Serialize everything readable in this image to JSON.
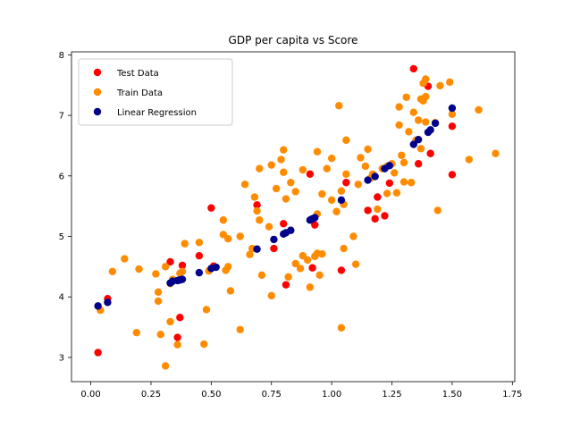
{
  "chart_data": {
    "type": "scatter",
    "title": "GDP per capita vs Score",
    "xlabel": "",
    "ylabel": "",
    "xlim": [
      -0.08,
      1.76
    ],
    "ylim": [
      2.6,
      8.05
    ],
    "xticks": [
      0.0,
      0.25,
      0.5,
      0.75,
      1.0,
      1.25,
      1.5,
      1.75
    ],
    "xtick_labels": [
      "0.00",
      "0.25",
      "0.50",
      "0.75",
      "1.00",
      "1.25",
      "1.50",
      "1.75"
    ],
    "yticks": [
      3,
      4,
      5,
      6,
      7,
      8
    ],
    "ytick_labels": [
      "3",
      "4",
      "5",
      "6",
      "7",
      "8"
    ],
    "grid": false,
    "legend_position": "top-left",
    "series": [
      {
        "name": "Test Data",
        "color": "#ff0000",
        "points": [
          [
            0.03,
            3.08
          ],
          [
            0.07,
            3.97
          ],
          [
            0.33,
            4.58
          ],
          [
            0.36,
            3.33
          ],
          [
            0.37,
            3.66
          ],
          [
            0.38,
            4.52
          ],
          [
            0.45,
            4.68
          ],
          [
            0.5,
            5.47
          ],
          [
            0.51,
            4.51
          ],
          [
            0.69,
            5.52
          ],
          [
            0.76,
            4.8
          ],
          [
            0.8,
            5.21
          ],
          [
            0.81,
            4.2
          ],
          [
            0.91,
            6.03
          ],
          [
            0.92,
            4.48
          ],
          [
            0.93,
            5.19
          ],
          [
            1.04,
            4.44
          ],
          [
            1.06,
            5.89
          ],
          [
            1.15,
            5.43
          ],
          [
            1.18,
            5.29
          ],
          [
            1.19,
            5.65
          ],
          [
            1.22,
            5.34
          ],
          [
            1.24,
            5.88
          ],
          [
            1.34,
            7.77
          ],
          [
            1.36,
            6.2
          ],
          [
            1.4,
            7.48
          ],
          [
            1.41,
            6.37
          ],
          [
            1.5,
            6.82
          ],
          [
            1.5,
            6.02
          ]
        ]
      },
      {
        "name": "Train Data",
        "color": "#ff8c00",
        "points": [
          [
            0.04,
            3.78
          ],
          [
            0.09,
            4.42
          ],
          [
            0.14,
            4.63
          ],
          [
            0.19,
            3.41
          ],
          [
            0.2,
            4.46
          ],
          [
            0.27,
            4.38
          ],
          [
            0.28,
            3.93
          ],
          [
            0.28,
            4.08
          ],
          [
            0.29,
            3.38
          ],
          [
            0.31,
            2.86
          ],
          [
            0.31,
            4.5
          ],
          [
            0.33,
            3.59
          ],
          [
            0.33,
            4.22
          ],
          [
            0.34,
            4.29
          ],
          [
            0.36,
            3.21
          ],
          [
            0.37,
            4.39
          ],
          [
            0.38,
            4.42
          ],
          [
            0.39,
            4.88
          ],
          [
            0.45,
            4.9
          ],
          [
            0.47,
            3.22
          ],
          [
            0.48,
            3.79
          ],
          [
            0.49,
            4.43
          ],
          [
            0.55,
            5.27
          ],
          [
            0.55,
            5.03
          ],
          [
            0.56,
            4.44
          ],
          [
            0.57,
            4.5
          ],
          [
            0.57,
            4.96
          ],
          [
            0.58,
            4.1
          ],
          [
            0.62,
            5.0
          ],
          [
            0.62,
            3.46
          ],
          [
            0.64,
            5.86
          ],
          [
            0.66,
            4.7
          ],
          [
            0.67,
            4.8
          ],
          [
            0.68,
            5.65
          ],
          [
            0.69,
            5.42
          ],
          [
            0.7,
            5.27
          ],
          [
            0.7,
            6.12
          ],
          [
            0.71,
            4.36
          ],
          [
            0.74,
            5.16
          ],
          [
            0.75,
            6.18
          ],
          [
            0.75,
            4.02
          ],
          [
            0.77,
            5.79
          ],
          [
            0.79,
            6.27
          ],
          [
            0.8,
            6.43
          ],
          [
            0.8,
            6.06
          ],
          [
            0.81,
            5.62
          ],
          [
            0.82,
            4.33
          ],
          [
            0.83,
            5.89
          ],
          [
            0.85,
            5.74
          ],
          [
            0.85,
            4.55
          ],
          [
            0.87,
            4.47
          ],
          [
            0.88,
            4.68
          ],
          [
            0.88,
            6.1
          ],
          [
            0.9,
            4.61
          ],
          [
            0.91,
            4.16
          ],
          [
            0.93,
            4.67
          ],
          [
            0.94,
            6.4
          ],
          [
            0.94,
            5.37
          ],
          [
            0.94,
            4.72
          ],
          [
            0.95,
            4.36
          ],
          [
            0.96,
            5.7
          ],
          [
            0.96,
            4.71
          ],
          [
            0.98,
            6.12
          ],
          [
            1.0,
            6.29
          ],
          [
            1.0,
            5.6
          ],
          [
            1.02,
            5.41
          ],
          [
            1.03,
            7.16
          ],
          [
            1.04,
            5.75
          ],
          [
            1.04,
            3.49
          ],
          [
            1.05,
            5.53
          ],
          [
            1.05,
            4.8
          ],
          [
            1.06,
            6.59
          ],
          [
            1.06,
            6.03
          ],
          [
            1.09,
            5.0
          ],
          [
            1.1,
            4.54
          ],
          [
            1.11,
            5.86
          ],
          [
            1.12,
            6.3
          ],
          [
            1.14,
            6.16
          ],
          [
            1.15,
            6.44
          ],
          [
            1.16,
            5.96
          ],
          [
            1.17,
            6.03
          ],
          [
            1.19,
            5.45
          ],
          [
            1.21,
            6.12
          ],
          [
            1.23,
            5.71
          ],
          [
            1.23,
            6.16
          ],
          [
            1.25,
            6.2
          ],
          [
            1.26,
            6.05
          ],
          [
            1.27,
            5.72
          ],
          [
            1.28,
            6.84
          ],
          [
            1.28,
            7.14
          ],
          [
            1.29,
            6.34
          ],
          [
            1.3,
            6.22
          ],
          [
            1.3,
            5.9
          ],
          [
            1.31,
            7.3
          ],
          [
            1.32,
            6.73
          ],
          [
            1.33,
            5.89
          ],
          [
            1.34,
            7.05
          ],
          [
            1.35,
            6.59
          ],
          [
            1.36,
            6.92
          ],
          [
            1.37,
            7.27
          ],
          [
            1.37,
            6.45
          ],
          [
            1.38,
            7.24
          ],
          [
            1.38,
            7.53
          ],
          [
            1.39,
            7.6
          ],
          [
            1.39,
            6.89
          ],
          [
            1.39,
            7.31
          ],
          [
            1.43,
            6.88
          ],
          [
            1.44,
            5.43
          ],
          [
            1.45,
            7.49
          ],
          [
            1.49,
            7.55
          ],
          [
            1.5,
            7.02
          ],
          [
            1.57,
            6.27
          ],
          [
            1.61,
            7.09
          ],
          [
            1.68,
            6.37
          ]
        ]
      },
      {
        "name": "Linear Regression",
        "color": "#00008b",
        "points": [
          [
            0.03,
            3.85
          ],
          [
            0.07,
            3.91
          ],
          [
            0.33,
            4.23
          ],
          [
            0.34,
            4.26
          ],
          [
            0.36,
            4.27
          ],
          [
            0.37,
            4.28
          ],
          [
            0.38,
            4.29
          ],
          [
            0.45,
            4.4
          ],
          [
            0.5,
            4.47
          ],
          [
            0.52,
            4.49
          ],
          [
            0.69,
            4.79
          ],
          [
            0.76,
            4.95
          ],
          [
            0.8,
            5.04
          ],
          [
            0.81,
            5.06
          ],
          [
            0.83,
            5.1
          ],
          [
            0.91,
            5.27
          ],
          [
            0.92,
            5.29
          ],
          [
            0.93,
            5.31
          ],
          [
            1.04,
            5.6
          ],
          [
            1.15,
            5.93
          ],
          [
            1.18,
            5.99
          ],
          [
            1.22,
            6.12
          ],
          [
            1.24,
            6.17
          ],
          [
            1.34,
            6.52
          ],
          [
            1.36,
            6.6
          ],
          [
            1.4,
            6.72
          ],
          [
            1.41,
            6.76
          ],
          [
            1.43,
            6.87
          ],
          [
            1.5,
            7.12
          ]
        ]
      }
    ]
  }
}
